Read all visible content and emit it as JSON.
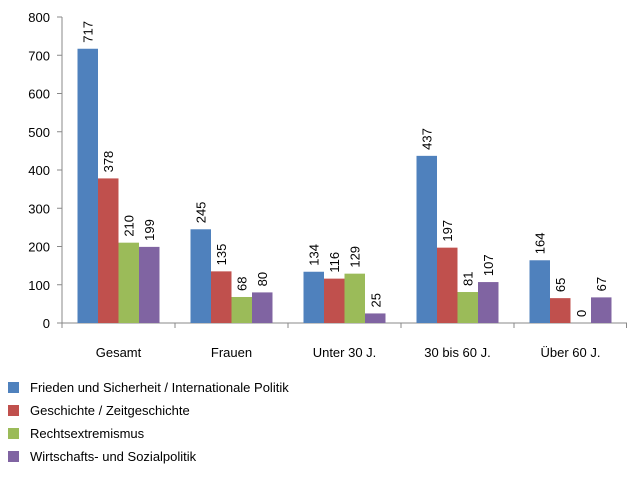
{
  "chart_data": {
    "type": "bar",
    "categories": [
      "Gesamt",
      "Frauen",
      "Unter 30 J.",
      "30 bis 60 J.",
      "Über 60 J."
    ],
    "series": [
      {
        "name": "Frieden und Sicherheit / Internationale Politik",
        "color": "#4f81bd",
        "values": [
          717,
          245,
          134,
          437,
          164
        ]
      },
      {
        "name": "Geschichte / Zeitgeschichte",
        "color": "#c0504d",
        "values": [
          378,
          135,
          116,
          197,
          65
        ]
      },
      {
        "name": "Rechtsextremismus",
        "color": "#9bbb59",
        "values": [
          210,
          68,
          129,
          81,
          0
        ]
      },
      {
        "name": "Wirtschafts- und Sozialpolitik",
        "color": "#8064a2",
        "values": [
          199,
          80,
          25,
          107,
          67
        ]
      }
    ],
    "ylim": [
      0,
      800
    ],
    "yticks": [
      0,
      100,
      200,
      300,
      400,
      500,
      600,
      700,
      800
    ],
    "data_labels": true,
    "legend": "bottom"
  }
}
